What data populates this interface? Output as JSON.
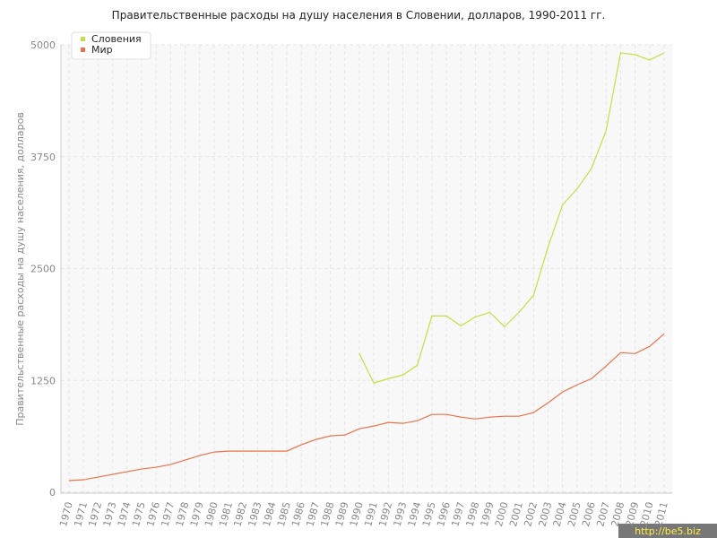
{
  "chart_data": {
    "type": "line",
    "title": "Правительственные расходы на душу населения в Словении, долларов, 1990-2011 гг.",
    "y_label": "Правительственные расходы на душу населения, долларов",
    "watermark": "http://be5.biz",
    "categories": [
      "1970",
      "1971",
      "1972",
      "1973",
      "1974",
      "1975",
      "1976",
      "1977",
      "1978",
      "1979",
      "1980",
      "1981",
      "1982",
      "1983",
      "1984",
      "1985",
      "1986",
      "1987",
      "1988",
      "1989",
      "1990",
      "1991",
      "1992",
      "1993",
      "1994",
      "1995",
      "1996",
      "1997",
      "1998",
      "1999",
      "2000",
      "2001",
      "2002",
      "2003",
      "2004",
      "2005",
      "2006",
      "2007",
      "2008",
      "2009",
      "2010",
      "2011"
    ],
    "series": [
      {
        "name": "Словения",
        "color": "#c5dd44",
        "values": [
          null,
          null,
          null,
          null,
          null,
          null,
          null,
          null,
          null,
          null,
          null,
          null,
          null,
          null,
          null,
          null,
          null,
          null,
          null,
          null,
          1550,
          1220,
          1270,
          1310,
          1420,
          1970,
          1970,
          1860,
          1960,
          2010,
          1850,
          2010,
          2200,
          2740,
          3210,
          3390,
          3620,
          4040,
          4910,
          4890,
          4830,
          4910
        ]
      },
      {
        "name": "Мир",
        "color": "#e8734a",
        "values": [
          130,
          140,
          170,
          200,
          230,
          260,
          280,
          310,
          360,
          410,
          450,
          460,
          460,
          460,
          460,
          460,
          530,
          590,
          630,
          640,
          710,
          740,
          780,
          770,
          800,
          870,
          870,
          840,
          820,
          840,
          850,
          850,
          890,
          1000,
          1120,
          1200,
          1270,
          1410,
          1560,
          1550,
          1630,
          1770
        ]
      }
    ],
    "ylim": [
      0,
      5000
    ],
    "yticks": [
      0,
      1250,
      2500,
      3750,
      5000
    ],
    "grid": true,
    "legend": "top-left"
  }
}
